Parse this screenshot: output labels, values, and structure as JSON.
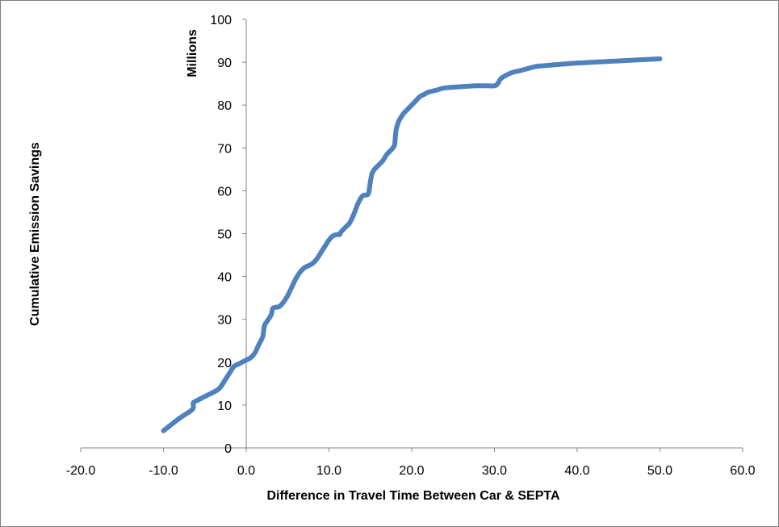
{
  "chart_data": {
    "type": "line",
    "title": "",
    "xlabel": "Difference in Travel Time Between Car & SEPTA",
    "ylabel": "Cumulative Emission Savings",
    "y_units_label": "Millions",
    "xlim": [
      -20,
      60
    ],
    "ylim": [
      0,
      100
    ],
    "x_tick_labels": [
      "-20.0",
      "-10.0",
      "0.0",
      "10.0",
      "20.0",
      "30.0",
      "40.0",
      "50.0",
      "60.0"
    ],
    "y_tick_labels": [
      "0",
      "10",
      "20",
      "30",
      "40",
      "50",
      "60",
      "70",
      "80",
      "90",
      "100"
    ],
    "grid": false,
    "legend": "none",
    "series": [
      {
        "color": "#4F81BD",
        "x": [
          -10.0,
          -8.0,
          -6.5,
          -6.4,
          -6.0,
          -5.0,
          -3.5,
          -3.0,
          -2.5,
          -2.0,
          -1.5,
          -1.0,
          0.0,
          0.5,
          1.0,
          1.5,
          2.0,
          2.2,
          2.5,
          3.0,
          3.2,
          3.5,
          4.0,
          4.5,
          5.0,
          5.5,
          6.0,
          6.5,
          7.0,
          7.5,
          8.0,
          8.5,
          9.0,
          9.5,
          10.0,
          10.5,
          11.0,
          11.3,
          11.5,
          12.0,
          12.5,
          13.0,
          13.5,
          14.0,
          14.3,
          14.5,
          14.8,
          15.0,
          15.2,
          15.5,
          16.0,
          16.5,
          17.0,
          17.5,
          17.9,
          18.0,
          18.1,
          18.3,
          18.5,
          19.0,
          19.5,
          20.0,
          20.5,
          21.0,
          21.5,
          22.0,
          23.0,
          24.0,
          26.0,
          28.0,
          29.0,
          30.0,
          30.4,
          30.7,
          31.0,
          32.0,
          33.0,
          34.0,
          35.0,
          36.0,
          40.0,
          45.0,
          50.0
        ],
        "y": [
          4.0,
          7.0,
          9.0,
          10.5,
          11.0,
          12.0,
          13.5,
          14.5,
          16.0,
          17.5,
          19.0,
          19.5,
          20.5,
          21.0,
          22.0,
          24.0,
          26.0,
          28.5,
          29.5,
          31.0,
          32.5,
          32.8,
          33.0,
          34.0,
          35.5,
          37.5,
          39.5,
          41.0,
          42.0,
          42.5,
          43.0,
          44.0,
          45.5,
          47.0,
          48.5,
          49.5,
          49.8,
          49.8,
          50.5,
          51.5,
          52.5,
          54.5,
          57.0,
          58.7,
          59.0,
          59.0,
          59.5,
          62.0,
          64.0,
          65.0,
          66.0,
          67.0,
          68.5,
          69.5,
          70.5,
          72.0,
          74.0,
          75.5,
          76.5,
          78.0,
          79.0,
          80.0,
          81.0,
          82.0,
          82.5,
          83.0,
          83.5,
          84.0,
          84.3,
          84.5,
          84.5,
          84.5,
          85.0,
          86.0,
          86.5,
          87.5,
          88.0,
          88.5,
          89.0,
          89.2,
          89.8,
          90.3,
          90.8
        ]
      }
    ]
  }
}
